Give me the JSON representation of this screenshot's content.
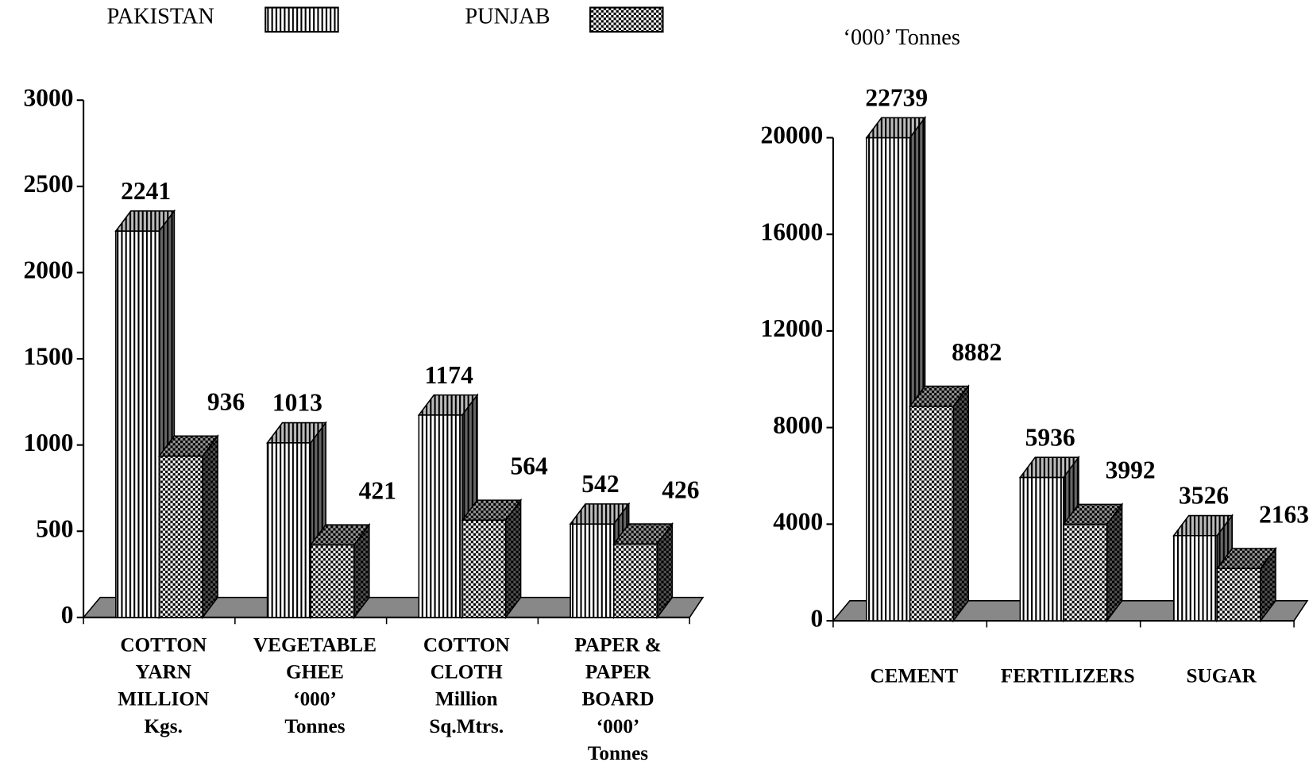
{
  "legend": [
    {
      "series": 0
    },
    {
      "series": 1
    }
  ],
  "chart_data": [
    {
      "type": "bar3d",
      "categories": [
        [
          "COTTON",
          "YARN",
          "MILLION",
          "Kgs."
        ],
        [
          "VEGETABLE",
          "GHEE",
          "‘000’",
          "Tonnes"
        ],
        [
          "COTTON",
          "CLOTH",
          "Million",
          "Sq.Mtrs."
        ],
        [
          "PAPER &",
          "PAPER",
          "BOARD",
          "‘000’",
          "Tonnes"
        ]
      ],
      "series": [
        {
          "name": "PAKISTAN",
          "color": "#000000",
          "pattern": "vertical-stripes",
          "values": [
            2241,
            1013,
            1174,
            542
          ]
        },
        {
          "name": "PUNJAB",
          "color": "#000000",
          "pattern": "checker",
          "values": [
            936,
            421,
            564,
            426
          ]
        }
      ],
      "ylim": [
        0,
        3000
      ],
      "yticks": [
        0,
        500,
        1000,
        1500,
        2000,
        2500,
        3000
      ]
    },
    {
      "type": "bar3d",
      "ylabel": "‘000’ Tonnes",
      "categories": [
        "CEMENT",
        "FERTILIZERS",
        "SUGAR"
      ],
      "series": [
        {
          "color": "#000000",
          "pattern": "vertical-stripes",
          "values": [
            22739,
            5936,
            3526
          ]
        },
        {
          "color": "#000000",
          "pattern": "checker",
          "values": [
            8882,
            3992,
            2163
          ]
        }
      ],
      "ylim": [
        0,
        20000
      ],
      "yticks": [
        0,
        4000,
        8000,
        12000,
        16000,
        20000
      ]
    }
  ]
}
